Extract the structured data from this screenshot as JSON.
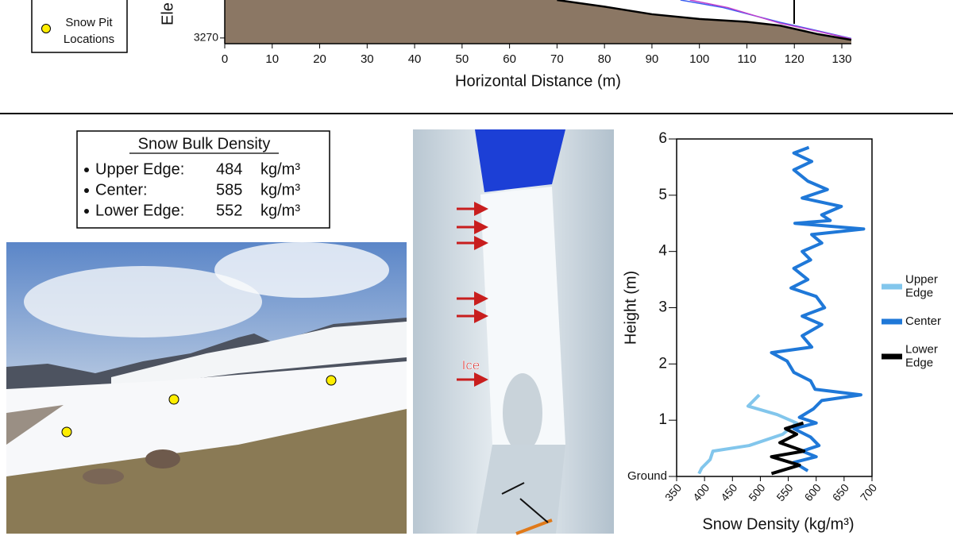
{
  "legend_box": {
    "label_lines": [
      "Snow Pit",
      "Locations"
    ]
  },
  "density_box": {
    "title": "Snow Bulk Density",
    "rows": [
      {
        "label": "Upper Edge:",
        "value": 484,
        "unit": "kg/m³"
      },
      {
        "label": "Center:",
        "value": 585,
        "unit": "kg/m³"
      },
      {
        "label": "Lower Edge:",
        "value": 552,
        "unit": "kg/m³"
      }
    ]
  },
  "photo_annotation": "Ice",
  "chart_data": [
    {
      "type": "area",
      "ylabel": "Ele",
      "xlabel": "Horizontal Distance (m)",
      "fill": "#8b7764",
      "xlim": [
        0,
        132
      ],
      "xticks": [
        0,
        10,
        20,
        30,
        40,
        50,
        60,
        70,
        80,
        90,
        100,
        110,
        120,
        130
      ],
      "ylim": [
        3269.4,
        3274
      ],
      "yticks": [
        3270
      ],
      "series": [
        {
          "color": "#3a5ef0",
          "x": [
            96,
            105,
            117,
            125,
            132
          ],
          "values": [
            3274,
            3273.2,
            3271.65,
            3270.75,
            3269.95
          ]
        },
        {
          "color": "#c040cc",
          "x": [
            98,
            106,
            117,
            125,
            132
          ],
          "values": [
            3274,
            3273.2,
            3271.55,
            3270.7,
            3269.9
          ]
        },
        {
          "color": "#000000",
          "x": [
            70,
            80,
            90,
            100,
            110,
            117,
            125,
            132
          ],
          "values": [
            3274,
            3273.3,
            3272.5,
            3272,
            3271.7,
            3271.3,
            3270.4,
            3269.8
          ]
        }
      ]
    },
    {
      "type": "line",
      "xlabel": "Snow Density (kg/m³)",
      "ylabel": "Height (m)",
      "xlim": [
        350,
        700
      ],
      "xticks": [
        350,
        400,
        450,
        500,
        550,
        600,
        650,
        700
      ],
      "ylim": [
        0,
        6
      ],
      "yticks": [
        {
          "value": 0,
          "label": "Ground"
        },
        1,
        2,
        3,
        4,
        5,
        6
      ],
      "series": [
        {
          "name": "Upper Edge",
          "color": "#82c6ec",
          "x": [
            498,
            478,
            530,
            565,
            540,
            480,
            415,
            410,
            395,
            390
          ],
          "values": [
            1.45,
            1.25,
            1.1,
            0.95,
            0.75,
            0.55,
            0.45,
            0.3,
            0.15,
            0.05
          ]
        },
        {
          "name": "Center",
          "color": "#1f78d8",
          "x": [
            587,
            560,
            592,
            560,
            585,
            620,
            575,
            645,
            610,
            625,
            562,
            685,
            592,
            610,
            575,
            590,
            560,
            585,
            555,
            600,
            615,
            575,
            610,
            575,
            592,
            520,
            548,
            560,
            590,
            598,
            680,
            610,
            595,
            570,
            600,
            560,
            590,
            605,
            575,
            600,
            560,
            585
          ],
          "values": [
            5.85,
            5.75,
            5.6,
            5.45,
            5.25,
            5.1,
            4.95,
            4.8,
            4.65,
            4.55,
            4.5,
            4.4,
            4.3,
            4.15,
            4,
            3.85,
            3.7,
            3.5,
            3.35,
            3.2,
            3,
            2.85,
            2.7,
            2.5,
            2.3,
            2.2,
            2.05,
            1.85,
            1.7,
            1.55,
            1.45,
            1.35,
            1.2,
            1.05,
            0.95,
            0.85,
            0.7,
            0.55,
            0.45,
            0.35,
            0.25,
            0.1
          ]
        },
        {
          "name": "Lower Edge",
          "color": "#000000",
          "x": [
            577,
            545,
            565,
            535,
            578,
            520,
            570,
            520
          ],
          "values": [
            0.95,
            0.85,
            0.75,
            0.6,
            0.45,
            0.35,
            0.2,
            0.05
          ]
        }
      ]
    }
  ]
}
